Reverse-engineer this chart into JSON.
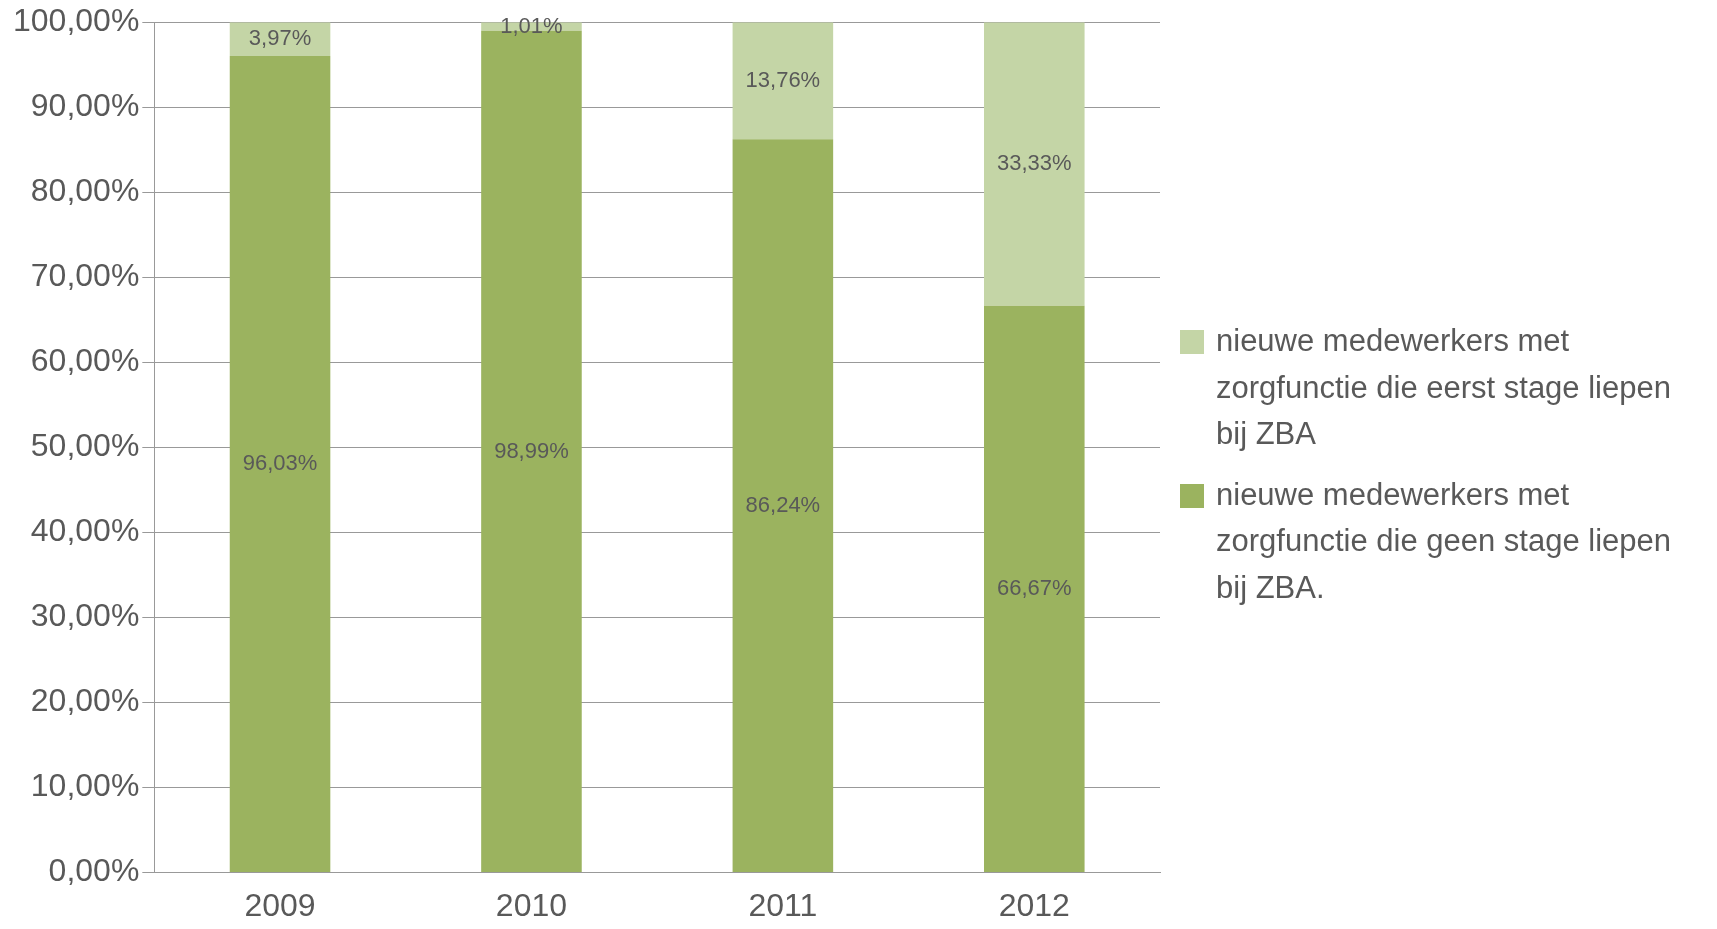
{
  "chart_data": {
    "type": "bar",
    "stacked": true,
    "categories": [
      "2009",
      "2010",
      "2011",
      "2012"
    ],
    "series": [
      {
        "name": "nieuwe medewerkers met zorgfunctie die geen stage liepen bij ZBA.",
        "color": "#9bb35f",
        "values": [
          96.03,
          98.99,
          86.24,
          66.67
        ],
        "value_labels": [
          "96,03%",
          "98,99%",
          "86,24%",
          "66,67%"
        ]
      },
      {
        "name": "nieuwe medewerkers met zorgfunctie die eerst stage liepen bij ZBA",
        "color": "#c4d5a6",
        "values": [
          3.97,
          1.01,
          13.76,
          33.33
        ],
        "value_labels": [
          "3,97%",
          "1,01%",
          "13,76%",
          "33,33%"
        ]
      }
    ],
    "ylim": [
      0,
      100
    ],
    "yticks": [
      {
        "value": 0,
        "label": "0,00%"
      },
      {
        "value": 10,
        "label": "10,00%"
      },
      {
        "value": 20,
        "label": "20,00%"
      },
      {
        "value": 30,
        "label": "30,00%"
      },
      {
        "value": 40,
        "label": "40,00%"
      },
      {
        "value": 50,
        "label": "50,00%"
      },
      {
        "value": 60,
        "label": "60,00%"
      },
      {
        "value": 70,
        "label": "70,00%"
      },
      {
        "value": 80,
        "label": "80,00%"
      },
      {
        "value": 90,
        "label": "90,00%"
      },
      {
        "value": 100,
        "label": "100,00%"
      }
    ],
    "grid": "y",
    "legend": "right"
  }
}
